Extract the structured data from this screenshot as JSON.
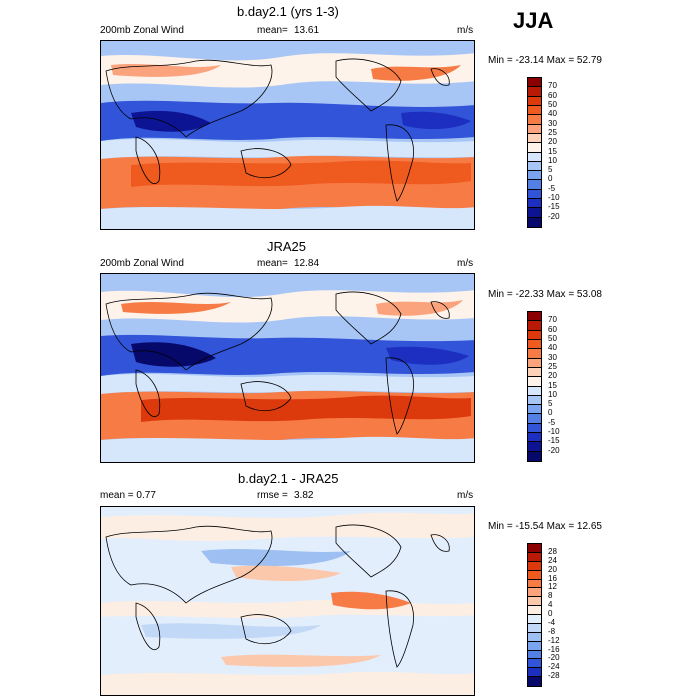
{
  "season": "JJA",
  "panels": [
    {
      "title": "b.day2.1 (yrs 1-3)",
      "left_label": "200mb Zonal Wind",
      "mean_label": "mean=",
      "mean_value": "13.61",
      "units": "m/s",
      "minmax": "Min = -23.14 Max =  52.79",
      "colorbar": {
        "labels": [
          "70",
          "60",
          "50",
          "40",
          "30",
          "25",
          "20",
          "15",
          "10",
          "5",
          "0",
          "-5",
          "-10",
          "-15",
          "-20"
        ],
        "colors": [
          "#8b0000",
          "#b81a05",
          "#dc3a0c",
          "#ef5a1e",
          "#f77b45",
          "#fba37c",
          "#fdd2b8",
          "#fdf3ea",
          "#d6e6fb",
          "#a8c6f5",
          "#7aa4ef",
          "#5480e6",
          "#3154d9",
          "#1c2fc0",
          "#0d1494",
          "#07096a"
        ]
      }
    },
    {
      "title": "JRA25",
      "left_label": "200mb Zonal Wind",
      "mean_label": "mean=",
      "mean_value": "12.84",
      "units": "m/s",
      "minmax": "Min = -22.33 Max =  53.08",
      "colorbar": {
        "labels": [
          "70",
          "60",
          "50",
          "40",
          "30",
          "25",
          "20",
          "15",
          "10",
          "5",
          "0",
          "-5",
          "-10",
          "-15",
          "-20"
        ],
        "colors": [
          "#8b0000",
          "#b81a05",
          "#dc3a0c",
          "#ef5a1e",
          "#f77b45",
          "#fba37c",
          "#fdd2b8",
          "#fdf3ea",
          "#d6e6fb",
          "#a8c6f5",
          "#7aa4ef",
          "#5480e6",
          "#3154d9",
          "#1c2fc0",
          "#0d1494",
          "#07096a"
        ]
      }
    },
    {
      "title": "b.day2.1 - JRA25",
      "left_label": "mean =   0.77",
      "mean_label": "rmse =",
      "mean_value": "3.82",
      "units": "m/s",
      "minmax": "Min = -15.54 Max =  12.65",
      "colorbar": {
        "labels": [
          "28",
          "24",
          "20",
          "16",
          "12",
          "8",
          "4",
          "0",
          "-4",
          "-8",
          "-12",
          "-16",
          "-20",
          "-24",
          "-28"
        ],
        "colors": [
          "#8b0000",
          "#b81a05",
          "#dc3a0c",
          "#ef5a1e",
          "#f77b45",
          "#fba37c",
          "#fcc8ac",
          "#fdeee3",
          "#e3eefd",
          "#c2d8f7",
          "#9ebff2",
          "#7aa4ef",
          "#5480e6",
          "#3154d9",
          "#1c2fc0",
          "#07096a"
        ]
      }
    }
  ],
  "palette": {
    "mean_seq": [
      "#3154d9",
      "#7aa4ef",
      "#a8c6f5",
      "#d6e6fb",
      "#fdf3ea",
      "#fba37c",
      "#ef5a1e"
    ],
    "diff_seq": [
      "#7aa4ef",
      "#c2d8f7",
      "#e3eefd",
      "#fdeee3",
      "#fcc8ac",
      "#f77b45"
    ]
  }
}
